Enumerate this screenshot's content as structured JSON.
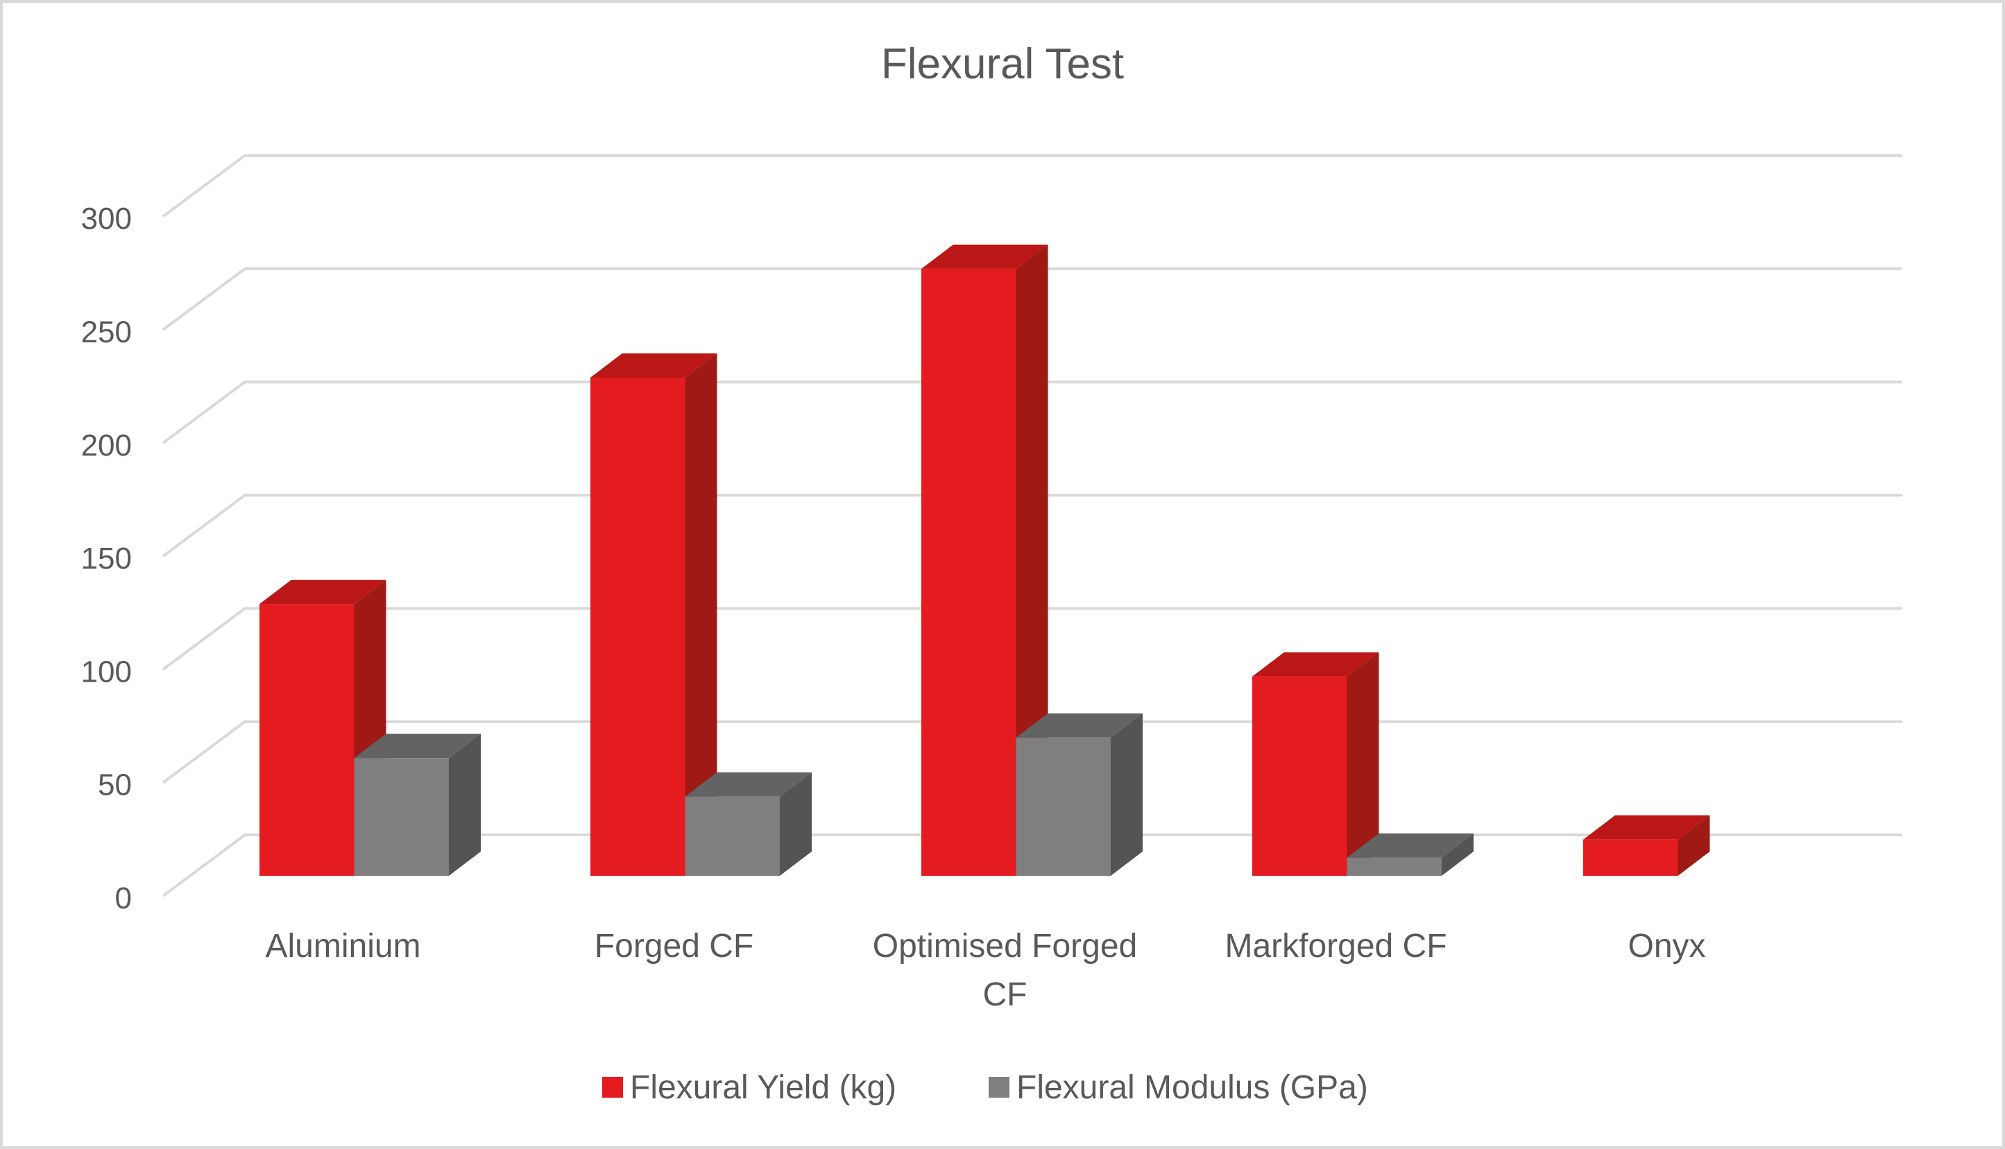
{
  "chart_data": {
    "type": "bar",
    "subtype": "3d-clustered-column",
    "title": "Flexural Test",
    "xlabel": "",
    "ylabel": "",
    "categories": [
      "Aluminium",
      "Forged CF",
      "Optimised Forged CF",
      "Markforged CF",
      "Onyx"
    ],
    "series": [
      {
        "name": "Flexural Yield (kg)",
        "color": "#e41b1f",
        "values": [
          120,
          220,
          268,
          88,
          16
        ]
      },
      {
        "name": "Flexural Modulus (GPa)",
        "color": "#7f7f7f",
        "values": [
          52,
          35,
          61,
          8,
          null
        ]
      }
    ],
    "ylim": [
      0,
      300
    ],
    "yticks": [
      0,
      50,
      100,
      150,
      200,
      250,
      300
    ],
    "grid": true,
    "legend_position": "bottom"
  },
  "legend": {
    "items": [
      {
        "label": "Flexural Yield (kg)",
        "color": "#e41b1f"
      },
      {
        "label": "Flexural Modulus (GPa)",
        "color": "#7f7f7f"
      }
    ]
  },
  "colors": {
    "text": "#595959",
    "grid": "#d9d9d9",
    "border": "#d9d9d9",
    "yield_front": "#e41b1f",
    "yield_top": "#bb1717",
    "yield_side": "#9f1915",
    "modulus_front": "#7f7f7f",
    "modulus_top": "#636363",
    "modulus_side": "#545454"
  }
}
